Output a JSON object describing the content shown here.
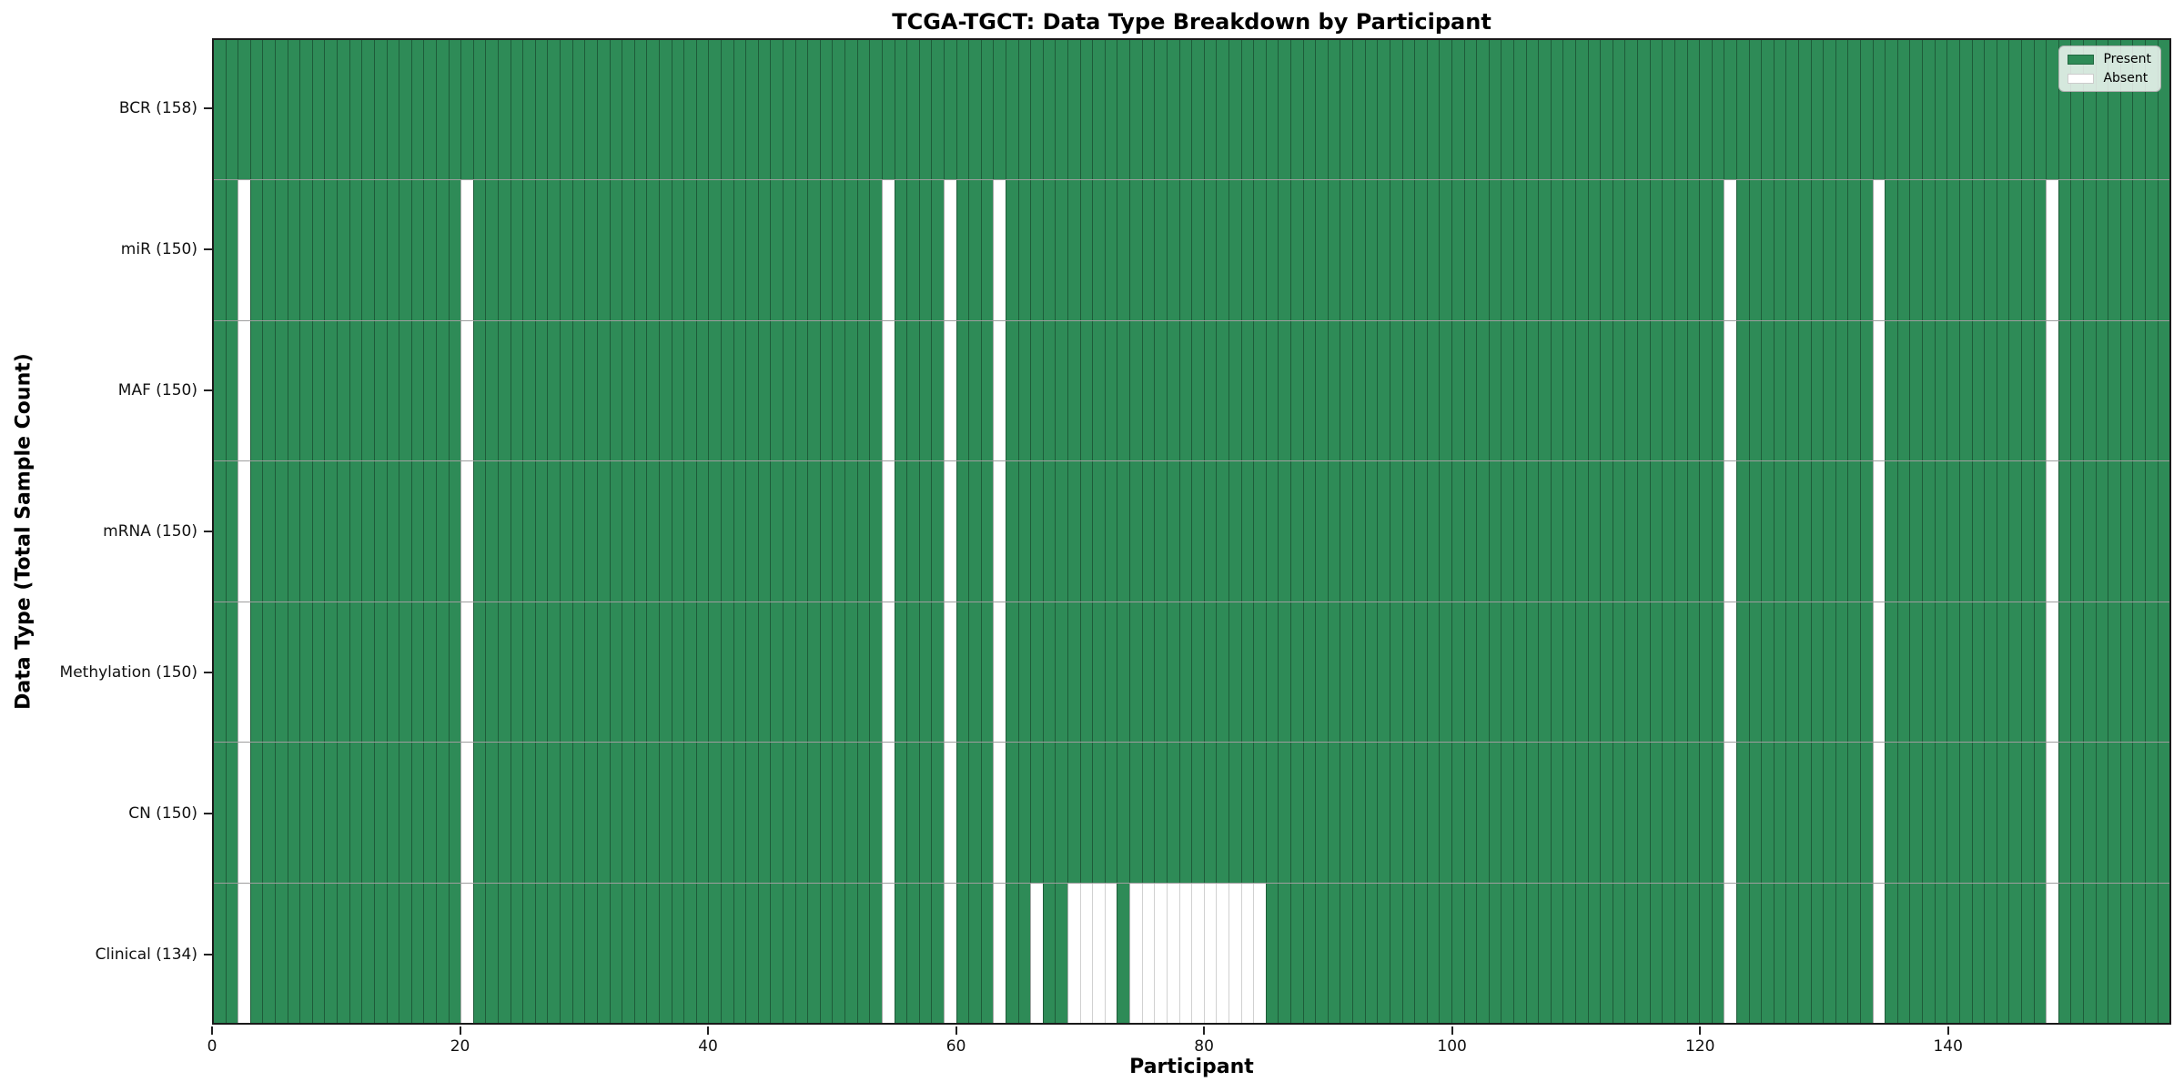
{
  "chart_data": {
    "type": "heatmap",
    "title": "TCGA-TGCT: Data Type Breakdown by Participant",
    "xlabel": "Participant",
    "ylabel": "Data Type (Total Sample Count)",
    "n_participants": 158,
    "x_ticks": [
      0,
      20,
      40,
      60,
      80,
      100,
      120,
      140
    ],
    "rows": [
      {
        "label": "BCR (158)",
        "total": 158,
        "absent": []
      },
      {
        "label": "miR (150)",
        "total": 150,
        "absent": [
          2,
          20,
          54,
          59,
          63,
          122,
          134,
          148
        ]
      },
      {
        "label": "MAF (150)",
        "total": 150,
        "absent": [
          2,
          20,
          54,
          59,
          63,
          122,
          134,
          148
        ]
      },
      {
        "label": "mRNA (150)",
        "total": 150,
        "absent": [
          2,
          20,
          54,
          59,
          63,
          122,
          134,
          148
        ]
      },
      {
        "label": "Methylation (150)",
        "total": 150,
        "absent": [
          2,
          20,
          54,
          59,
          63,
          122,
          134,
          148
        ]
      },
      {
        "label": "CN (150)",
        "total": 150,
        "absent": [
          2,
          20,
          54,
          59,
          63,
          122,
          134,
          148
        ]
      },
      {
        "label": "Clinical (134)",
        "total": 134,
        "absent": [
          2,
          20,
          54,
          59,
          63,
          66,
          69,
          70,
          71,
          72,
          74,
          75,
          76,
          77,
          78,
          79,
          80,
          81,
          82,
          83,
          84,
          122,
          134,
          148
        ]
      }
    ],
    "legend": [
      {
        "label": "Present",
        "color": "#2e8b57"
      },
      {
        "label": "Absent",
        "color": "#ffffff"
      }
    ],
    "colors": {
      "present": "#2e8b57",
      "absent": "#ffffff",
      "edge": "rgba(0,0,0,0.34)"
    },
    "legend_position": "upper right",
    "grid": "cell-edges"
  }
}
